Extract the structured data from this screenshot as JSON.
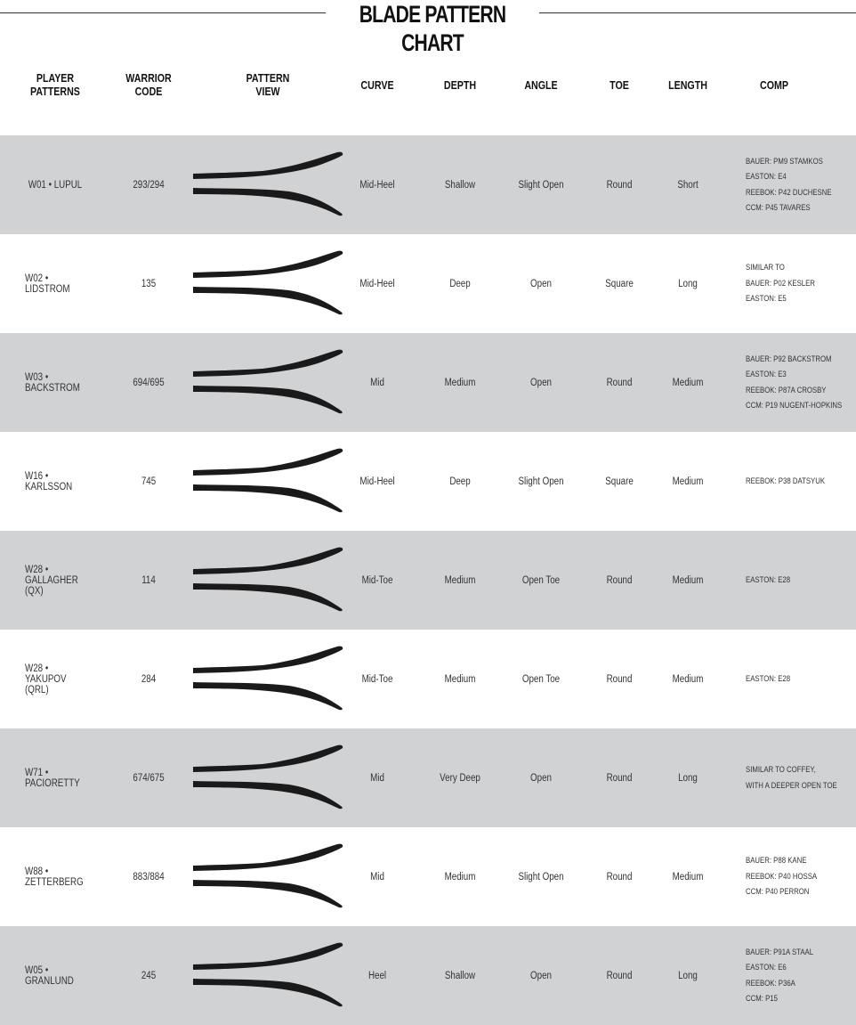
{
  "title": "BLADE PATTERN CHART",
  "headers": {
    "player": "PLAYER\nPATTERNS",
    "code": "WARRIOR\nCODE",
    "view": "PATTERN\nVIEW",
    "curve": "CURVE",
    "depth": "DEPTH",
    "angle": "ANGLE",
    "toe": "TOE",
    "length": "LENGTH",
    "comp": "COMP"
  },
  "row_colors": {
    "shaded": "#d1d2d4",
    "plain": "#ffffff"
  },
  "rows": [
    {
      "player": "W01 • LUPUL",
      "code": "293/294",
      "curve": "Mid-Heel",
      "depth": "Shallow",
      "angle": "Slight Open",
      "toe": "Round",
      "length": "Short",
      "comp": [
        "BAUER: PM9 STAMKOS",
        "EASTON: E4",
        "REEBOK: P42 DUCHESNE",
        "CCM: P45 TAVARES"
      ]
    },
    {
      "player": "W02 • LIDSTROM",
      "code": "135",
      "curve": "Mid-Heel",
      "depth": "Deep",
      "angle": "Open",
      "toe": "Square",
      "length": "Long",
      "comp": [
        "SIMILAR TO",
        "BAUER: P02 KESLER",
        "EASTON: E5"
      ]
    },
    {
      "player": "W03 • BACKSTROM",
      "code": "694/695",
      "curve": "Mid",
      "depth": "Medium",
      "angle": "Open",
      "toe": "Round",
      "length": "Medium",
      "comp": [
        "BAUER: P92 BACKSTROM",
        "EASTON: E3",
        "REEBOK: P87A CROSBY",
        "CCM: P19 NUGENT-HOPKINS"
      ]
    },
    {
      "player": "W16 • KARLSSON",
      "code": "745",
      "curve": "Mid-Heel",
      "depth": "Deep",
      "angle": "Slight Open",
      "toe": "Square",
      "length": "Medium",
      "comp": [
        "REEBOK: P38 DATSYUK"
      ]
    },
    {
      "player": "W28 • GALLAGHER (QX)",
      "code": "114",
      "curve": "Mid-Toe",
      "depth": "Medium",
      "angle": "Open Toe",
      "toe": "Round",
      "length": "Medium",
      "comp": [
        "EASTON: E28"
      ]
    },
    {
      "player": "W28 • YAKUPOV (QRL)",
      "code": "284",
      "curve": "Mid-Toe",
      "depth": "Medium",
      "angle": "Open Toe",
      "toe": "Round",
      "length": "Medium",
      "comp": [
        "EASTON: E28"
      ]
    },
    {
      "player": "W71 • PACIORETTY",
      "code": "674/675",
      "curve": "Mid",
      "depth": "Very Deep",
      "angle": "Open",
      "toe": "Round",
      "length": "Long",
      "comp": [
        "SIMILAR TO COFFEY,",
        "WITH A DEEPER OPEN TOE"
      ]
    },
    {
      "player": "W88 • ZETTERBERG",
      "code": "883/884",
      "curve": "Mid",
      "depth": "Medium",
      "angle": "Slight Open",
      "toe": "Round",
      "length": "Medium",
      "comp": [
        "BAUER: P88 KANE",
        "REEBOK: P40 HOSSA",
        "CCM: P40 PERRON"
      ]
    },
    {
      "player": "W05 • GRANLUND",
      "code": "245",
      "curve": "Heel",
      "depth": "Shallow",
      "angle": "Open",
      "toe": "Round",
      "length": "Long",
      "comp": [
        "BAUER: P91A STAAL",
        "EASTON: E6",
        "REEBOK: P36A",
        "CCM: P15"
      ]
    }
  ]
}
